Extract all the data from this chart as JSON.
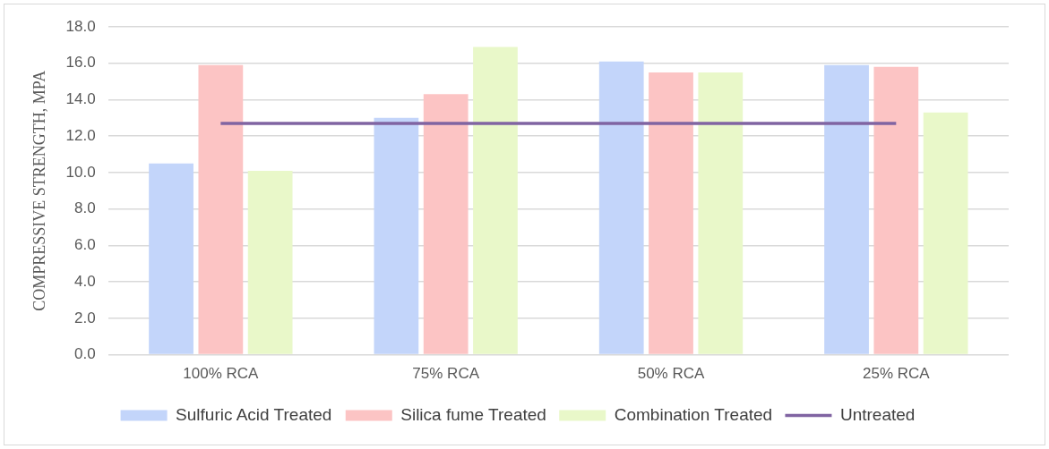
{
  "chart_data": {
    "type": "bar",
    "ylabel": "COMPRESSIVE STRENGTH, MPA",
    "categories": [
      "100% RCA",
      "75% RCA",
      "50% RCA",
      "25% RCA"
    ],
    "series": [
      {
        "name": "Sulfuric Acid Treated",
        "color": "#c3d5fa",
        "values": [
          10.5,
          13.0,
          16.1,
          15.9
        ]
      },
      {
        "name": "Silica fume Treated",
        "color": "#fcc4c4",
        "values": [
          15.9,
          14.3,
          15.5,
          15.8
        ]
      },
      {
        "name": "Combination Treated",
        "color": "#e9f8c9",
        "values": [
          10.1,
          16.9,
          15.5,
          13.3
        ]
      },
      {
        "name": "Untreated",
        "type": "line",
        "color": "#8064a2",
        "values": [
          12.7,
          12.7,
          12.7,
          12.7
        ]
      }
    ],
    "ylim": [
      0,
      18
    ],
    "yticks": [
      {
        "value": 0,
        "label": "0.0"
      },
      {
        "value": 2,
        "label": "2.0"
      },
      {
        "value": 4,
        "label": "4.0"
      },
      {
        "value": 6,
        "label": "6.0"
      },
      {
        "value": 8,
        "label": "8.0"
      },
      {
        "value": 10,
        "label": "10.0"
      },
      {
        "value": 12,
        "label": "12.0"
      },
      {
        "value": 14,
        "label": "14.0"
      },
      {
        "value": 16,
        "label": "16.0"
      },
      {
        "value": 18,
        "label": "18.0"
      }
    ],
    "grid": "y",
    "legend": "bottom",
    "marker": "none"
  }
}
